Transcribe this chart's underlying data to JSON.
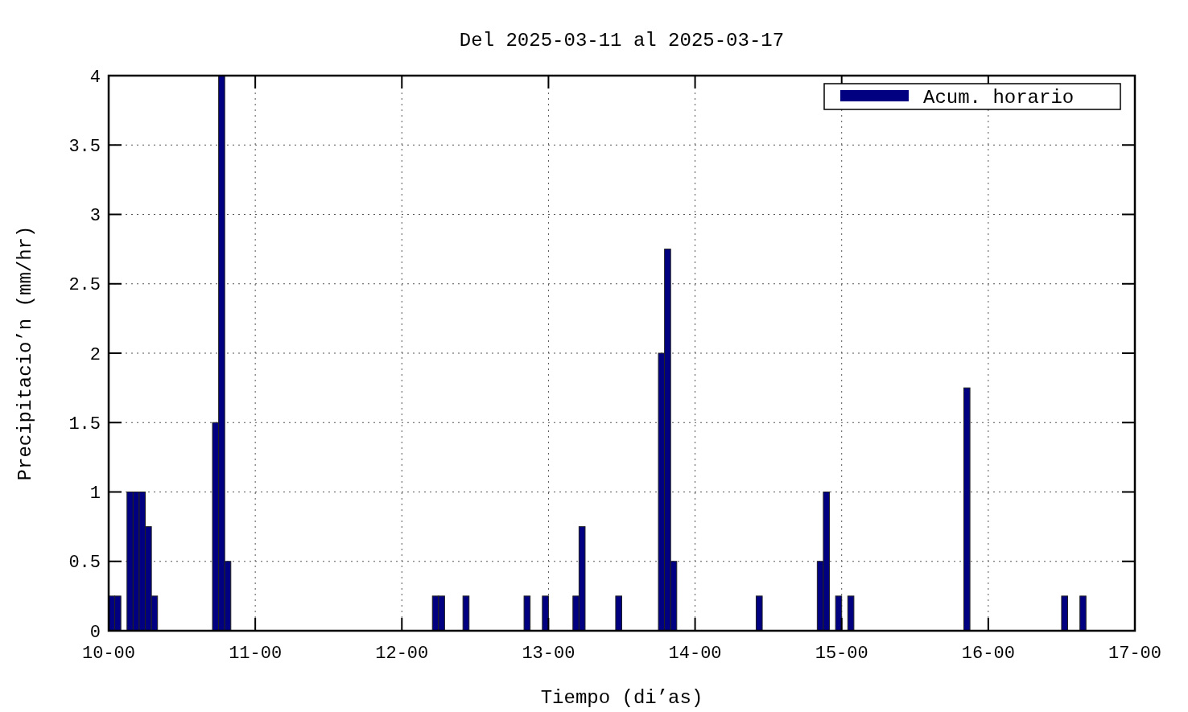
{
  "chart_data": {
    "type": "bar",
    "title": "Del 2025-03-11 al 2025-03-17",
    "xlabel": "Tiempo (di’as)",
    "ylabel": "Precipitacio’n (mm/hr)",
    "x": [
      "2025-03-10T00:30",
      "2025-03-10T01:30",
      "2025-03-10T03:30",
      "2025-03-10T04:30",
      "2025-03-10T05:30",
      "2025-03-10T06:30",
      "2025-03-10T07:30",
      "2025-03-10T17:30",
      "2025-03-10T18:30",
      "2025-03-10T19:30",
      "2025-03-12T05:30",
      "2025-03-12T06:30",
      "2025-03-12T10:30",
      "2025-03-12T20:30",
      "2025-03-12T23:30",
      "2025-03-13T04:30",
      "2025-03-13T05:30",
      "2025-03-13T11:30",
      "2025-03-13T18:30",
      "2025-03-13T19:30",
      "2025-03-13T20:30",
      "2025-03-14T10:30",
      "2025-03-14T20:30",
      "2025-03-14T21:30",
      "2025-03-14T23:30",
      "2025-03-15T01:30",
      "2025-03-15T20:30",
      "2025-03-16T12:30",
      "2025-03-16T15:30"
    ],
    "series": [
      {
        "name": "Acum. horario",
        "color": "#000080",
        "values": [
          0.25,
          0.25,
          1,
          1,
          1,
          0.75,
          0.25,
          1.5,
          4,
          0.5,
          0.25,
          0.25,
          0.25,
          0.25,
          0.25,
          0.25,
          0.75,
          0.25,
          2,
          2.75,
          0.5,
          0.25,
          0.5,
          1,
          0.25,
          0.25,
          1.75,
          0.25,
          0.25
        ]
      }
    ],
    "xlim": [
      "2025-03-10",
      "2025-03-17"
    ],
    "xticks": [
      {
        "value": "2025-03-10",
        "label": "10-00"
      },
      {
        "value": "2025-03-11",
        "label": "11-00"
      },
      {
        "value": "2025-03-12",
        "label": "12-00"
      },
      {
        "value": "2025-03-13",
        "label": "13-00"
      },
      {
        "value": "2025-03-14",
        "label": "14-00"
      },
      {
        "value": "2025-03-15",
        "label": "15-00"
      },
      {
        "value": "2025-03-16",
        "label": "16-00"
      },
      {
        "value": "2025-03-17",
        "label": "17-00"
      }
    ],
    "ylim": [
      0,
      4
    ],
    "yticks": [
      0,
      0.5,
      1,
      1.5,
      2,
      2.5,
      3,
      3.5,
      4
    ],
    "grid": true,
    "legend": "top right"
  }
}
